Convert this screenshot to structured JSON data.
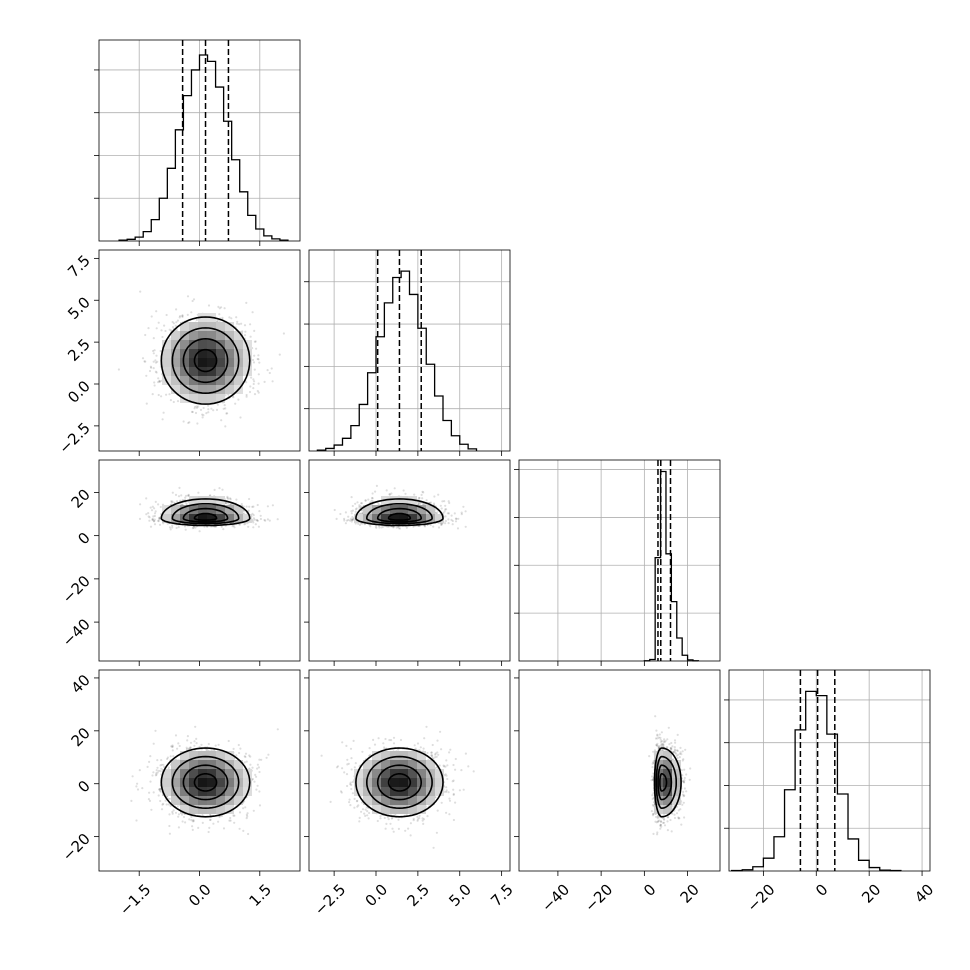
{
  "chart_data": {
    "type": "corner",
    "n_params": 4,
    "grid": true,
    "parameters": [
      {
        "index": 0,
        "range": [
          -2.5,
          2.5
        ],
        "ticks": [
          -1.5,
          0.0,
          1.5
        ],
        "tick_labels": [
          "−1.5",
          "0.0",
          "1.5"
        ],
        "mean": 0.15,
        "sigma": 0.55,
        "quantiles": [
          -0.42,
          0.15,
          0.72
        ]
      },
      {
        "index": 1,
        "range": [
          -4.0,
          8.0
        ],
        "ticks": [
          -2.5,
          0.0,
          2.5,
          5.0,
          7.5
        ],
        "tick_labels": [
          "−2.5",
          "0.0",
          "2.5",
          "5.0",
          "7.5"
        ],
        "mean": 1.4,
        "sigma": 1.3,
        "quantiles": [
          0.1,
          1.4,
          2.7
        ]
      },
      {
        "index": 2,
        "range": [
          -58,
          35
        ],
        "ticks": [
          -40,
          -20,
          0,
          20
        ],
        "tick_labels": [
          "−40",
          "−20",
          "0",
          "20"
        ],
        "mean": 8.0,
        "sigma": 3.0,
        "quantiles": [
          6.3,
          7.6,
          12.1
        ]
      },
      {
        "index": 3,
        "range": [
          -33,
          43
        ],
        "ticks": [
          -20,
          0,
          20,
          40
        ],
        "tick_labels": [
          "−20",
          "0",
          "20",
          "40"
        ],
        "mean": 0.5,
        "sigma": 6.5,
        "quantiles": [
          -6.0,
          0.5,
          7.0
        ]
      }
    ],
    "histograms": [
      {
        "param": 0,
        "bins": [
          -2.0,
          -1.8,
          -1.6,
          -1.4,
          -1.2,
          -1.0,
          -0.8,
          -0.6,
          -0.4,
          -0.2,
          0.0,
          0.2,
          0.4,
          0.6,
          0.8,
          1.0,
          1.2,
          1.4,
          1.6,
          1.8,
          2.0,
          2.2
        ],
        "counts": [
          2,
          4,
          9,
          22,
          50,
          100,
          170,
          260,
          340,
          400,
          435,
          420,
          360,
          280,
          190,
          115,
          60,
          28,
          12,
          5,
          2
        ],
        "ymax": 470,
        "yticks": [
          100,
          200,
          300,
          400
        ]
      },
      {
        "param": 1,
        "bins": [
          -3.5,
          -3.0,
          -2.5,
          -2.0,
          -1.5,
          -1.0,
          -0.5,
          0.0,
          0.5,
          1.0,
          1.5,
          2.0,
          2.5,
          3.0,
          3.5,
          4.0,
          4.5,
          5.0,
          5.5,
          6.0
        ],
        "counts": [
          2,
          6,
          14,
          30,
          60,
          110,
          185,
          270,
          350,
          410,
          425,
          370,
          290,
          205,
          130,
          72,
          36,
          16,
          5
        ],
        "ymax": 475,
        "yticks": [
          100,
          200,
          300,
          400
        ]
      },
      {
        "param": 2,
        "bins": [
          0,
          2.5,
          5,
          7.5,
          10,
          12.5,
          15,
          17.5,
          20,
          22.5,
          25
        ],
        "counts": [
          1,
          8,
          540,
          990,
          560,
          310,
          120,
          30,
          6,
          1
        ],
        "ymax": 1050,
        "yticks": [
          250,
          500,
          750,
          1000
        ]
      },
      {
        "param": 3,
        "bins": [
          -32,
          -28,
          -24,
          -20,
          -16,
          -12,
          -8,
          -4,
          0,
          4,
          8,
          12,
          16,
          20,
          24,
          28,
          32
        ],
        "counts": [
          1,
          3,
          10,
          30,
          80,
          190,
          330,
          420,
          410,
          320,
          180,
          75,
          25,
          8,
          2,
          1
        ],
        "ymax": 470,
        "yticks": [
          100,
          200,
          300,
          400
        ]
      }
    ],
    "pairs": [
      {
        "x": 0,
        "y": 1,
        "correlation": 0.0
      },
      {
        "x": 0,
        "y": 2,
        "correlation": 0.0
      },
      {
        "x": 1,
        "y": 2,
        "correlation": 0.0
      },
      {
        "x": 0,
        "y": 3,
        "correlation": 0.0
      },
      {
        "x": 1,
        "y": 3,
        "correlation": 0.0
      },
      {
        "x": 2,
        "y": 3,
        "correlation": 0.0
      }
    ],
    "contour_levels": [
      0.5,
      1.0,
      1.5,
      2.0
    ],
    "colors": {
      "line": "#000000",
      "grid": "#b0b0b0",
      "background": "#ffffff"
    }
  }
}
